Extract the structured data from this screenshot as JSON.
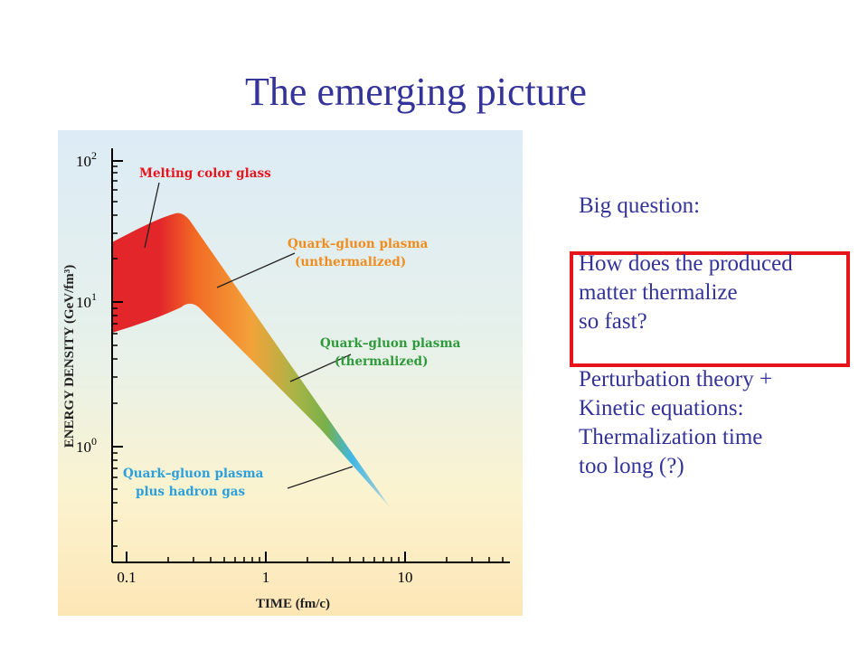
{
  "slide": {
    "title": "The emerging picture"
  },
  "notes": {
    "heading": "Big question:",
    "question_lines": [
      "How does the produced",
      "matter thermalize",
      "so fast?"
    ],
    "answer_lines": [
      "Perturbation theory +",
      "Kinetic equations:",
      "Thermalization time",
      "too long (?)"
    ]
  },
  "colors": {
    "title": "#333399",
    "highlight_border": "#e8141c",
    "label_red": "#e8141c",
    "label_orange": "#f08c1e",
    "label_green": "#2e9a3a",
    "label_blue": "#2a9fdc"
  },
  "figure": {
    "y_axis_label": "ENERGY DENSITY (GeV/fm³)",
    "x_axis_label": "TIME (fm/c)",
    "x_ticks": [
      "0.1",
      "1",
      "10"
    ],
    "y_ticks": [
      {
        "base": "10",
        "exp": "2"
      },
      {
        "base": "10",
        "exp": "1"
      },
      {
        "base": "10",
        "exp": "0"
      }
    ],
    "regions": [
      {
        "line1": "Melting color glass",
        "line2": ""
      },
      {
        "line1": "Quark–gluon plasma",
        "line2": "(unthermalized)"
      },
      {
        "line1": "Quark–gluon plasma",
        "line2": "(thermalized)"
      },
      {
        "line1": "Quark–gluon plasma",
        "line2": "plus hadron gas"
      }
    ]
  }
}
